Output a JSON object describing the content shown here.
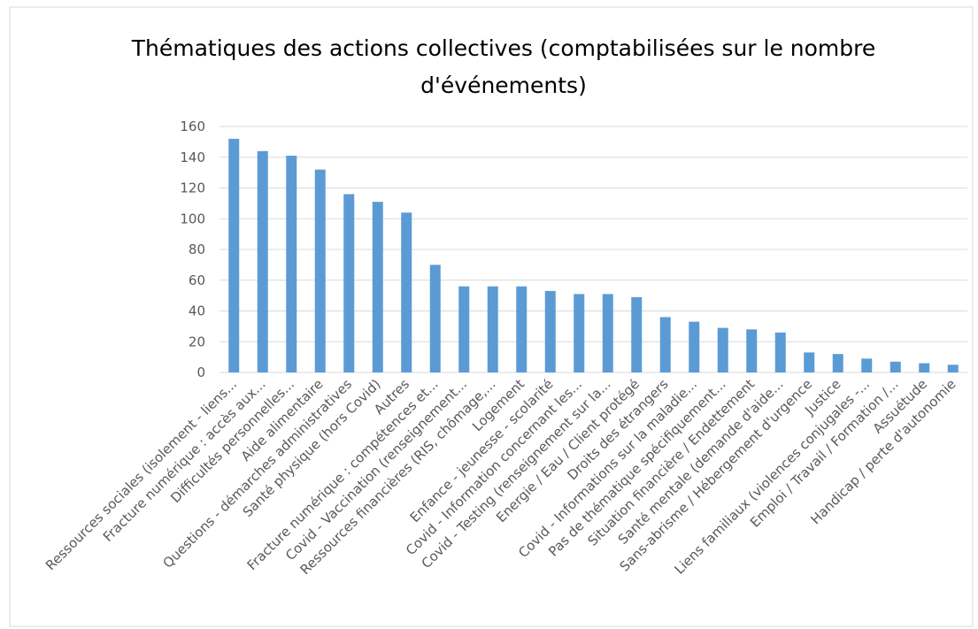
{
  "chart_data": {
    "type": "bar",
    "title": "Thématiques des actions collectives (comptabilisées sur le nombre d'événements)",
    "categories": [
      "Ressources sociales (isolement - liens...",
      "Fracture numérique : accès aux...",
      "Difficultés personnelles...",
      "Aide alimentaire",
      "Questions - démarches administratives",
      "Santé physique (hors Covid)",
      "Autres",
      "Fracture numérique : compétences et...",
      "Covid - Vaccination (renseignement...",
      "Ressources financières (RIS, chômage,...",
      "Logement",
      "Enfance - jeunesse - scolarité",
      "Covid - Information concernant les...",
      "Covid - Testing (renseignement sur la...",
      "Energie / Eau / Client protégé",
      "Droits des étrangers",
      "Covid - Informations sur la maladie...",
      "Pas de thématique spécifiquement...",
      "Situation financière / Endettement",
      "Santé mentale (demande d'aide...",
      "Sans-abrisme / Hébergement d'urgence",
      "Justice",
      "Liens familiaux (violences conjugales -...",
      "Emploi / Travail / Formation /...",
      "Assuétude",
      "Handicap / perte d'autonomie"
    ],
    "values": [
      152,
      144,
      141,
      132,
      116,
      111,
      104,
      70,
      56,
      56,
      56,
      53,
      51,
      51,
      49,
      36,
      33,
      29,
      28,
      26,
      13,
      12,
      9,
      7,
      6,
      5
    ],
    "color": "#5b9bd5",
    "ylim": [
      0,
      160
    ],
    "yticks": [
      0,
      20,
      40,
      60,
      80,
      100,
      120,
      140,
      160
    ],
    "grid": true
  }
}
